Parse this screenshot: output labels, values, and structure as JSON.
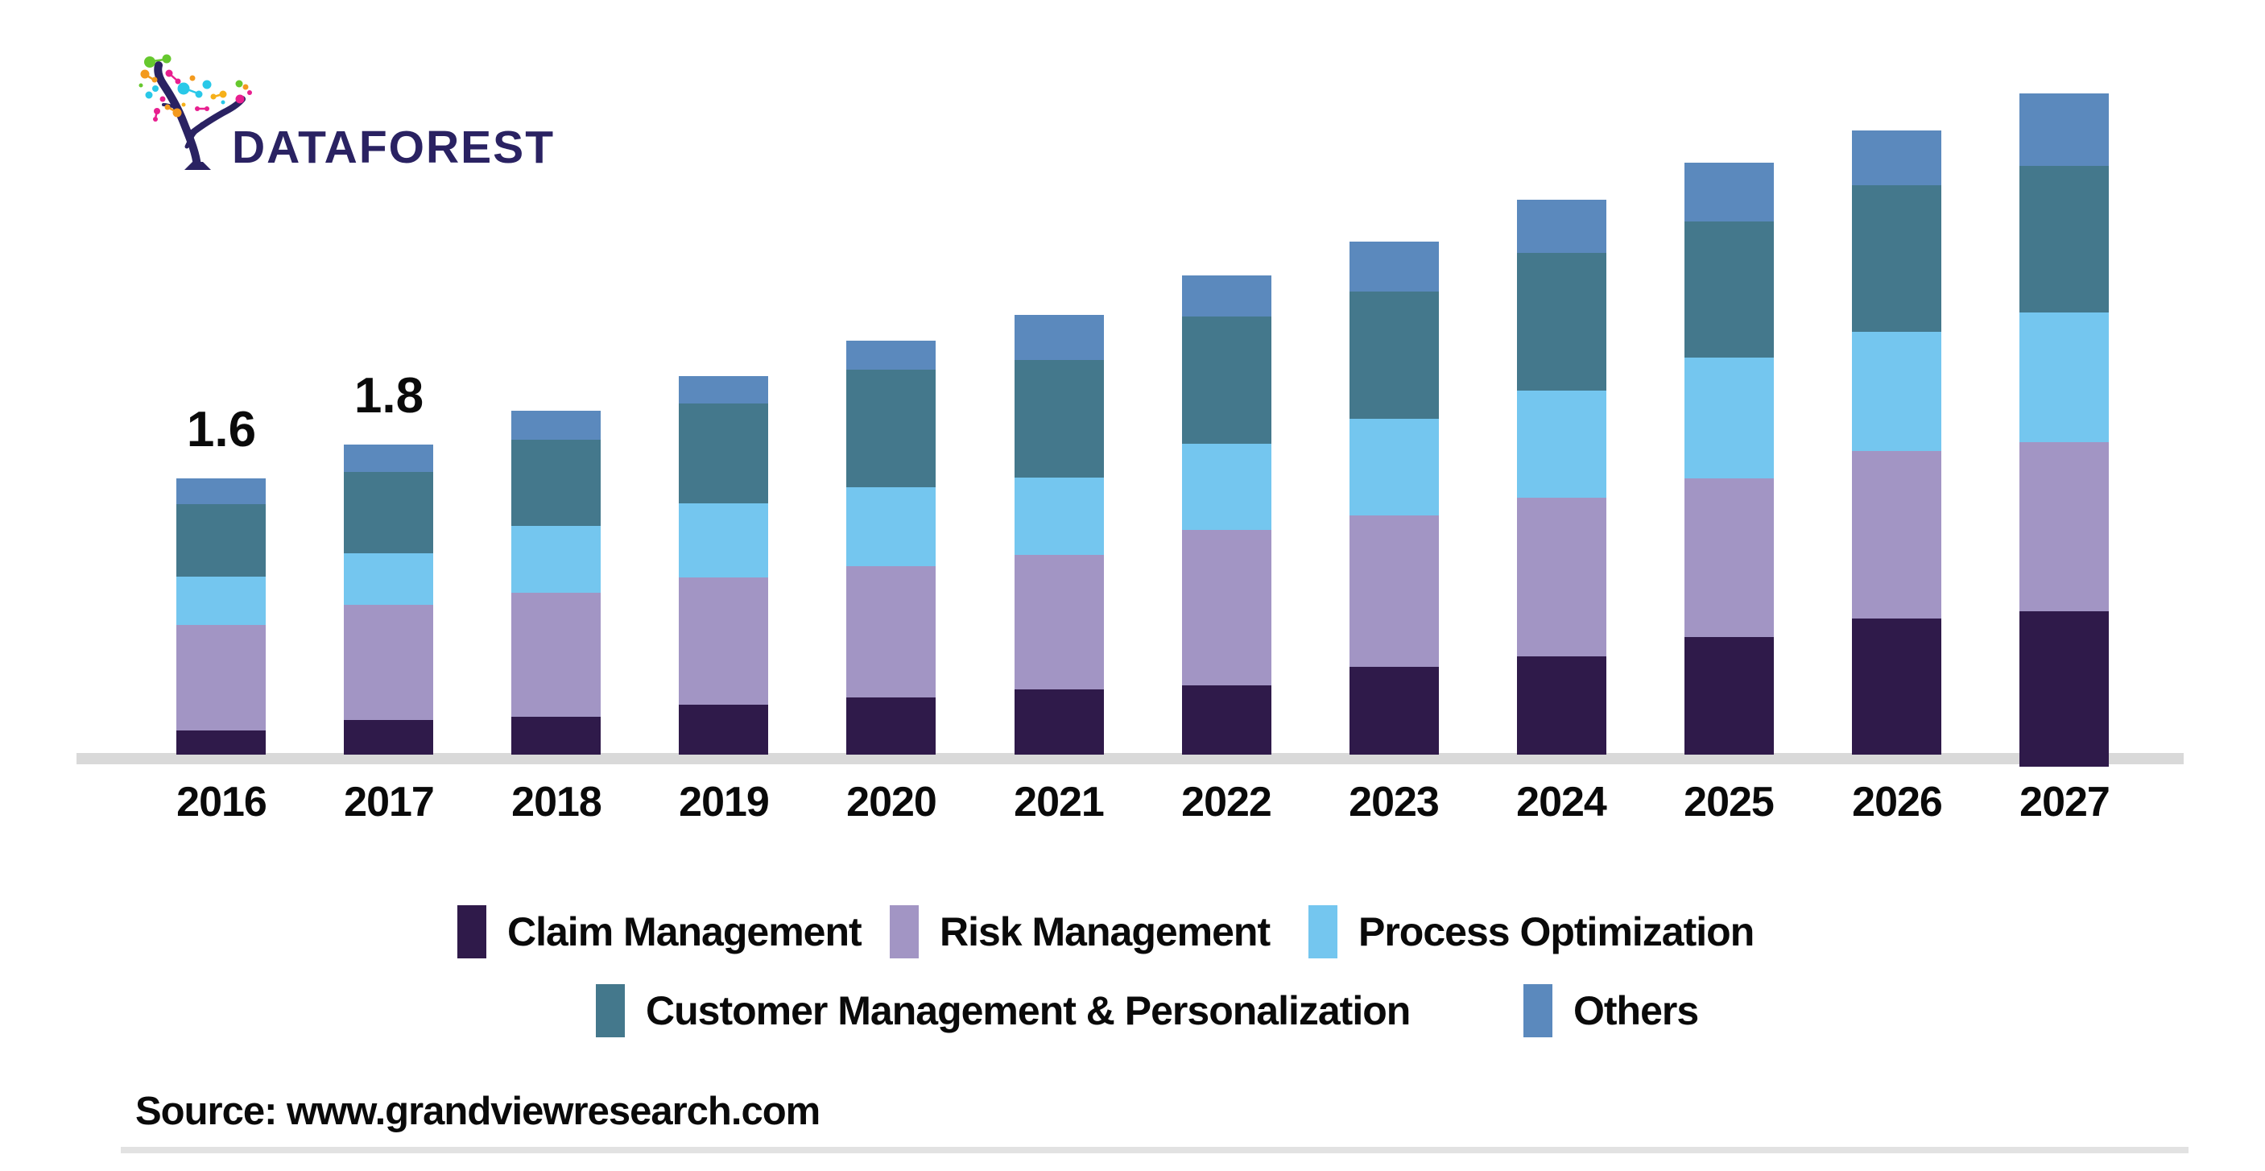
{
  "brand": {
    "logo_text": "DATAFOREST",
    "logo_color": "#2A2262",
    "logo_dot_colors": [
      "#66C82E",
      "#E81F8F",
      "#F39A1E",
      "#29C8E8",
      "#F6B019"
    ]
  },
  "source": {
    "label": "Source: www.grandviewresearch.com"
  },
  "colors": {
    "axis_line": "#D9D9D9",
    "footer_rule": "#E2E2E2",
    "text": "#0A0A0A"
  },
  "chart_data": {
    "type": "bar",
    "stacked": true,
    "title": "",
    "xlabel": "",
    "ylabel": "",
    "grid": false,
    "y_axis_visible": false,
    "legend_position": "bottom",
    "categories": [
      "2016",
      "2017",
      "2018",
      "2019",
      "2020",
      "2021",
      "2022",
      "2023",
      "2024",
      "2025",
      "2026",
      "2027"
    ],
    "series": [
      {
        "name": "Claim Management",
        "color": "#2F1A4A",
        "values": [
          0.14,
          0.2,
          0.22,
          0.29,
          0.33,
          0.38,
          0.4,
          0.51,
          0.57,
          0.68,
          0.79,
          0.9
        ]
      },
      {
        "name": "Risk Management",
        "color": "#A295C4",
        "values": [
          0.61,
          0.67,
          0.72,
          0.74,
          0.76,
          0.78,
          0.9,
          0.88,
          0.92,
          0.92,
          0.97,
          0.98
        ]
      },
      {
        "name": "Process Optimization",
        "color": "#74C6EF",
        "values": [
          0.28,
          0.3,
          0.39,
          0.43,
          0.46,
          0.45,
          0.5,
          0.56,
          0.62,
          0.7,
          0.69,
          0.75
        ]
      },
      {
        "name": "Customer Management & Personalization",
        "color": "#44788C",
        "values": [
          0.42,
          0.47,
          0.5,
          0.58,
          0.68,
          0.68,
          0.74,
          0.74,
          0.8,
          0.79,
          0.85,
          0.85
        ]
      },
      {
        "name": "Others",
        "color": "#5B89BD",
        "values": [
          0.15,
          0.16,
          0.17,
          0.16,
          0.17,
          0.26,
          0.24,
          0.29,
          0.31,
          0.34,
          0.32,
          0.42
        ]
      }
    ],
    "totals": [
      1.6,
      1.8,
      2.0,
      2.2,
      2.4,
      2.55,
      2.78,
      2.98,
      3.22,
      3.43,
      3.62,
      3.9
    ],
    "annotations": [
      {
        "category": "2016",
        "label": "1.6"
      },
      {
        "category": "2017",
        "label": "1.8"
      }
    ]
  }
}
